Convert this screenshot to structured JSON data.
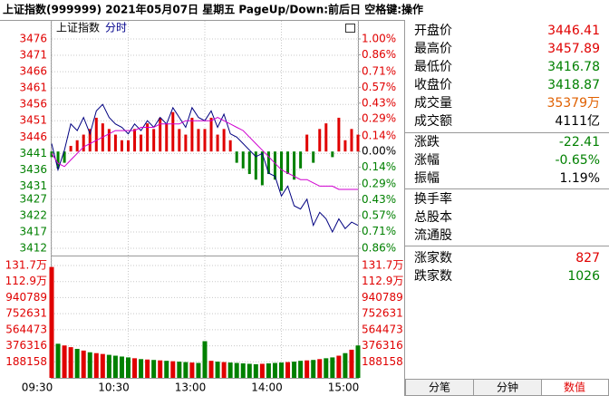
{
  "header": {
    "title": "上证指数(999999)  2021年05月07日 星期五 PageUp/Down:前后日 空格键:操作"
  },
  "chart_data": [
    {
      "type": "line",
      "title": "上证指数",
      "subtitle": "分时",
      "x": [
        0,
        5,
        10,
        15,
        20,
        25,
        30,
        35,
        40,
        45,
        50,
        55,
        60,
        65,
        70,
        75,
        80,
        85,
        90,
        95,
        100,
        105,
        110,
        115,
        120,
        125,
        130,
        135,
        140,
        145,
        150,
        155,
        160,
        165,
        170,
        175,
        180,
        185,
        190,
        195,
        200,
        205,
        210,
        215,
        220,
        225,
        230,
        235,
        240
      ],
      "xlim": [
        0,
        240
      ],
      "ylim": [
        3412,
        3476
      ],
      "yticks": [
        3476,
        3471,
        3466,
        3461,
        3456,
        3451,
        3446,
        3441,
        3436,
        3431,
        3427,
        3422,
        3417,
        3412
      ],
      "y2lim": [
        -0.86,
        1.0
      ],
      "y2ticks": [
        {
          "value": 1.0,
          "label": "1.00%"
        },
        {
          "value": 0.86,
          "label": "0.86%"
        },
        {
          "value": 0.71,
          "label": "0.71%"
        },
        {
          "value": 0.57,
          "label": "0.57%"
        },
        {
          "value": 0.43,
          "label": "0.43%"
        },
        {
          "value": 0.29,
          "label": "0.29%"
        },
        {
          "value": 0.14,
          "label": "0.14%"
        },
        {
          "value": 0,
          "label": "0.00%"
        },
        {
          "value": -0.14,
          "label": "0.14%"
        },
        {
          "value": -0.29,
          "label": "0.29%"
        },
        {
          "value": -0.43,
          "label": "0.43%"
        },
        {
          "value": -0.57,
          "label": "0.57%"
        },
        {
          "value": -0.71,
          "label": "0.71%"
        },
        {
          "value": -0.86,
          "label": "0.86%"
        }
      ],
      "grid": true,
      "series": [
        {
          "type": "line",
          "color": "#000080",
          "values": [
            3444,
            3436,
            3442,
            3450,
            3448,
            3452,
            3447,
            3454,
            3456,
            3452,
            3450,
            3449,
            3447,
            3450,
            3448,
            3451,
            3449,
            3452,
            3450,
            3455,
            3452,
            3449,
            3455,
            3452,
            3451,
            3454,
            3449,
            3453,
            3447,
            3446,
            3444,
            3442,
            3440,
            3441,
            3435,
            3434,
            3428,
            3431,
            3425,
            3424,
            3427,
            3419,
            3423,
            3421,
            3417,
            3421,
            3418,
            3420,
            3419
          ]
        },
        {
          "type": "line",
          "color": "#d000d0",
          "values": [
            3441,
            3438,
            3437,
            3439,
            3441,
            3443,
            3444,
            3445,
            3446,
            3447,
            3448,
            3448,
            3448,
            3448,
            3449,
            3449,
            3449,
            3450,
            3450,
            3450,
            3450,
            3451,
            3451,
            3451,
            3451,
            3451,
            3452,
            3451,
            3450,
            3449,
            3448,
            3446,
            3444,
            3442,
            3440,
            3438,
            3436,
            3435,
            3434,
            3433,
            3433,
            3432,
            3431,
            3431,
            3431,
            3430,
            3430,
            3430,
            3430
          ]
        },
        {
          "type": "bar",
          "axis": "y2",
          "color": "#e00000",
          "values": [
            null,
            null,
            null,
            0.05,
            0.1,
            0.15,
            0.2,
            0.3,
            0.25,
            0.2,
            0.15,
            0.1,
            0.1,
            0.2,
            0.15,
            0.25,
            0.2,
            0.3,
            0.25,
            0.35,
            0.2,
            0.15,
            0.3,
            0.2,
            0.2,
            0.3,
            0.15,
            0.2,
            0.1,
            null,
            null,
            null,
            null,
            null,
            null,
            null,
            null,
            null,
            null,
            null,
            0.15,
            null,
            0.2,
            0.25,
            null,
            0.3,
            0.1,
            0.2,
            0.15
          ]
        },
        {
          "type": "bar",
          "axis": "y2",
          "color": "#008000",
          "values": [
            -0.05,
            -0.15,
            -0.1,
            null,
            null,
            null,
            null,
            null,
            null,
            null,
            null,
            null,
            null,
            null,
            null,
            null,
            null,
            null,
            null,
            null,
            null,
            null,
            null,
            null,
            null,
            null,
            null,
            null,
            null,
            -0.1,
            -0.15,
            -0.2,
            -0.25,
            -0.3,
            -0.2,
            -0.25,
            -0.35,
            -0.2,
            -0.25,
            -0.15,
            null,
            -0.1,
            null,
            null,
            -0.05,
            null,
            null,
            null,
            null
          ]
        }
      ]
    },
    {
      "type": "bar",
      "x": [
        0,
        5,
        10,
        15,
        20,
        25,
        30,
        35,
        40,
        45,
        50,
        55,
        60,
        65,
        70,
        75,
        80,
        85,
        90,
        95,
        100,
        105,
        110,
        115,
        120,
        125,
        130,
        135,
        140,
        145,
        150,
        155,
        160,
        165,
        170,
        175,
        180,
        185,
        190,
        195,
        200,
        205,
        210,
        215,
        220,
        225,
        230,
        235,
        240
      ],
      "xlim": [
        0,
        240
      ],
      "xticks": [
        {
          "value": 0,
          "label": "09:30"
        },
        {
          "value": 60,
          "label": "10:30"
        },
        {
          "value": 120,
          "label": "13:00"
        },
        {
          "value": 180,
          "label": "14:00"
        },
        {
          "value": 240,
          "label": "15:00"
        }
      ],
      "values": [
        1300000,
        400000,
        380000,
        360000,
        340000,
        320000,
        300000,
        290000,
        280000,
        270000,
        260000,
        250000,
        240000,
        230000,
        220000,
        215000,
        210000,
        205000,
        200000,
        195000,
        190000,
        185000,
        180000,
        175000,
        430000,
        200000,
        190000,
        185000,
        180000,
        175000,
        170000,
        165000,
        160000,
        165000,
        170000,
        175000,
        180000,
        185000,
        190000,
        200000,
        205000,
        210000,
        220000,
        230000,
        240000,
        260000,
        290000,
        330000,
        380000
      ],
      "up_color": "#e00000",
      "down_color": "#008000",
      "ylim": [
        0,
        1317106
      ],
      "yticks": [
        {
          "value": 1317106,
          "label": "131.7万"
        },
        {
          "value": 1128948,
          "label": "112.9万"
        },
        940789,
        752631,
        564473,
        376316,
        188158
      ],
      "grid": true
    }
  ],
  "quote": {
    "rows": [
      {
        "label": "开盘价",
        "value": "3446.41"
      },
      {
        "label": "最高价",
        "value": "3457.89"
      },
      {
        "label": "最低价",
        "value": "3416.78"
      },
      {
        "label": "收盘价",
        "value": "3418.87"
      },
      {
        "label": "成交量",
        "value": "35379万"
      },
      {
        "label": "成交额",
        "value": "4111亿"
      },
      {
        "label": "涨跌",
        "value": "-22.41"
      },
      {
        "label": "涨幅",
        "value": "-0.65%"
      },
      {
        "label": "振幅",
        "value": "1.19%"
      },
      {
        "label": "换手率"
      },
      {
        "label": "总股本"
      },
      {
        "label": "流通股"
      },
      {
        "label": "涨家数",
        "value": "827"
      },
      {
        "label": "跌家数",
        "value": "1026"
      }
    ]
  },
  "tabs": [
    "分笔",
    "分钟",
    "数值"
  ]
}
